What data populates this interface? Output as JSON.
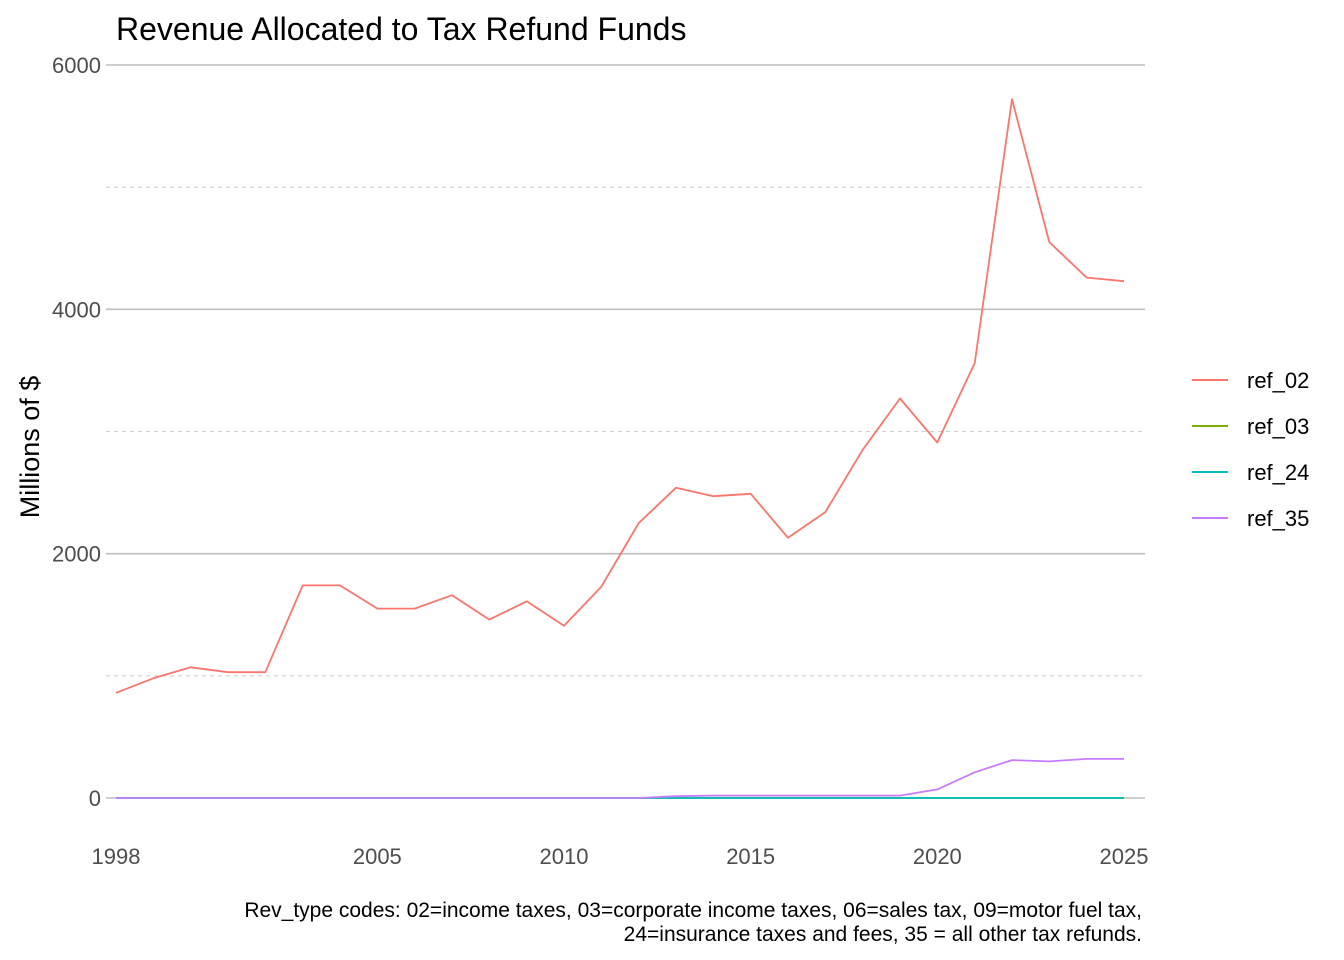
{
  "chart_data": {
    "type": "line",
    "title": "Revenue Allocated to Tax Refund Funds",
    "xlabel": "",
    "ylabel": "Millions of $",
    "xlim": [
      1998,
      2025
    ],
    "ylim": [
      0,
      6000
    ],
    "x_ticks": [
      1998,
      2005,
      2010,
      2015,
      2020,
      2025
    ],
    "y_ticks": [
      0,
      2000,
      4000,
      6000
    ],
    "y_minor_ticks": [
      1000,
      3000,
      5000
    ],
    "grid": true,
    "legend_position": "right",
    "x": [
      1998,
      1999,
      2000,
      2001,
      2002,
      2003,
      2004,
      2005,
      2006,
      2007,
      2008,
      2009,
      2010,
      2011,
      2012,
      2013,
      2014,
      2015,
      2016,
      2017,
      2018,
      2019,
      2020,
      2021,
      2022,
      2023,
      2024,
      2025
    ],
    "series": [
      {
        "name": "ref_02",
        "color": "#F8766D",
        "values": [
          860,
          980,
          1070,
          1030,
          1030,
          1740,
          1740,
          1550,
          1550,
          1660,
          1460,
          1610,
          1410,
          1730,
          2250,
          2540,
          2470,
          2490,
          2130,
          2340,
          2850,
          3270,
          2910,
          3560,
          5720,
          4550,
          4260,
          4230
        ]
      },
      {
        "name": "ref_03",
        "color": "#7CAE00",
        "values": [
          0,
          0,
          0,
          0,
          0,
          0,
          0,
          0,
          0,
          0,
          0,
          0,
          0,
          0,
          0,
          0,
          0,
          0,
          0,
          0,
          0,
          0,
          0,
          0,
          0,
          0,
          0,
          0
        ]
      },
      {
        "name": "ref_24",
        "color": "#00BFC4",
        "values": [
          0,
          0,
          0,
          0,
          0,
          0,
          0,
          0,
          0,
          0,
          0,
          0,
          0,
          0,
          0,
          0,
          0,
          0,
          0,
          0,
          0,
          0,
          0,
          0,
          0,
          0,
          0,
          0
        ]
      },
      {
        "name": "ref_35",
        "color": "#C77CFF",
        "values": [
          0,
          0,
          0,
          0,
          0,
          0,
          0,
          0,
          0,
          0,
          0,
          0,
          0,
          0,
          0,
          15,
          20,
          20,
          20,
          20,
          20,
          20,
          70,
          210,
          310,
          300,
          320,
          320
        ]
      }
    ],
    "caption_lines": [
      "Rev_type codes: 02=income taxes, 03=corporate income taxes, 06=sales tax, 09=motor fuel tax,",
      "24=insurance taxes and fees, 35 = all other tax refunds."
    ]
  }
}
